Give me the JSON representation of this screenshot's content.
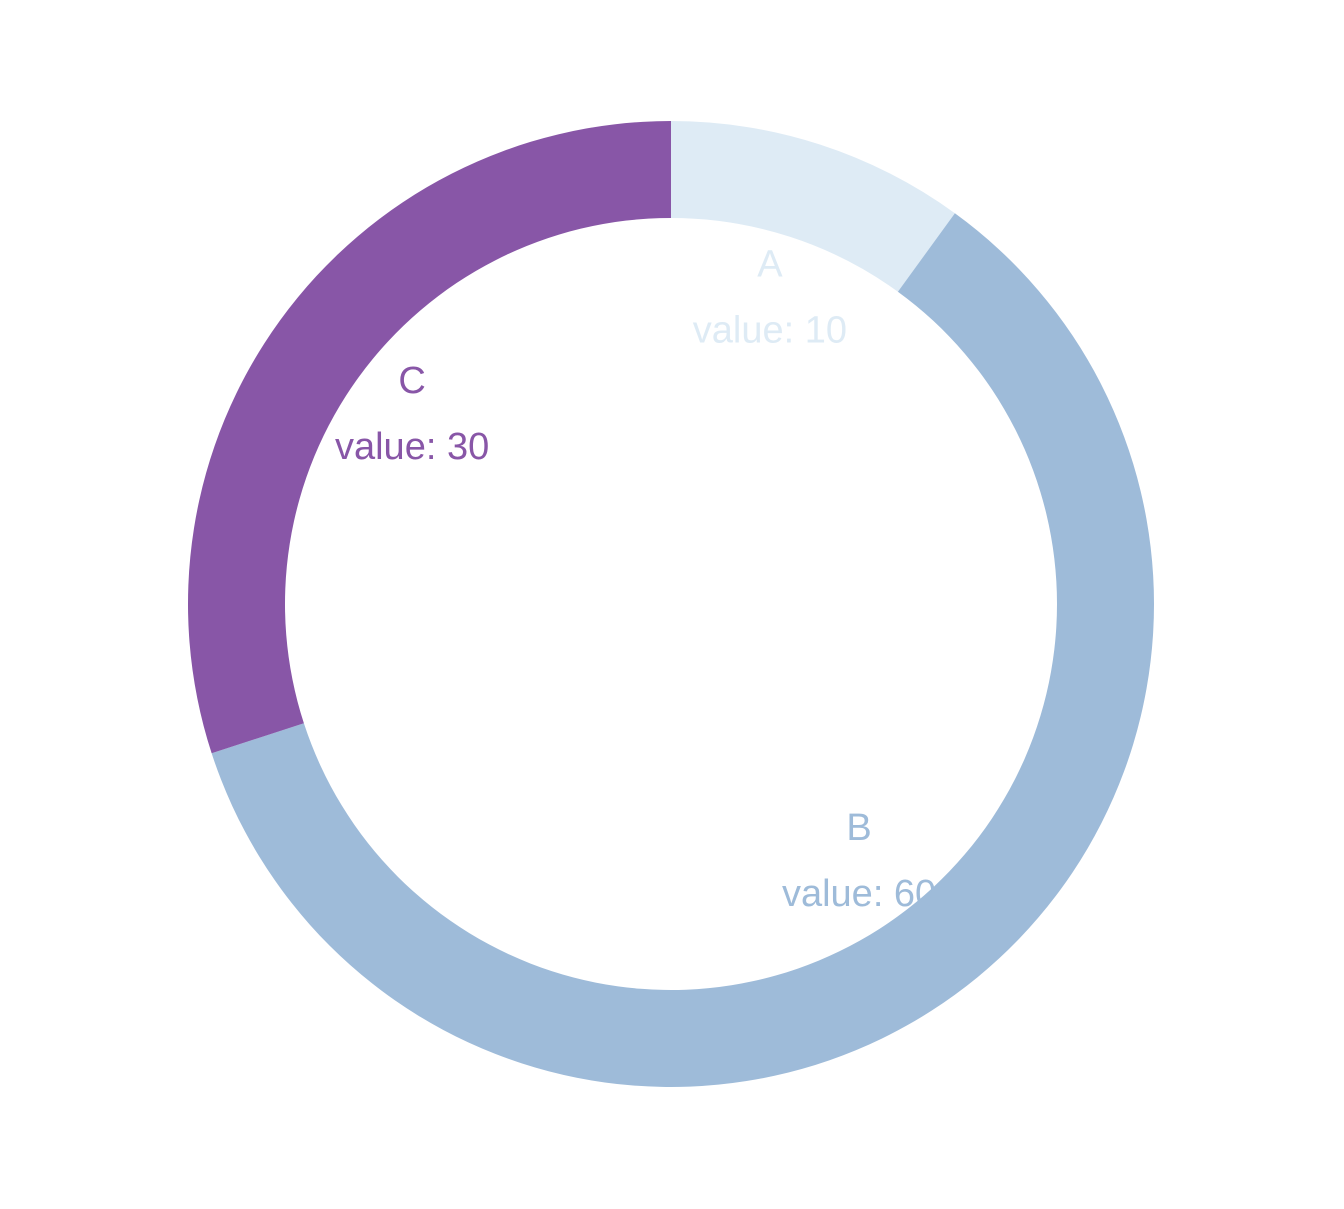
{
  "chart_data": {
    "type": "donut",
    "categories": [
      "A",
      "B",
      "C"
    ],
    "values": [
      10,
      60,
      30
    ],
    "value_labels": [
      "value: 10",
      "value: 60",
      "value: 30"
    ],
    "colors": [
      "#deebf5",
      "#9ebbd9",
      "#8856a7"
    ]
  }
}
